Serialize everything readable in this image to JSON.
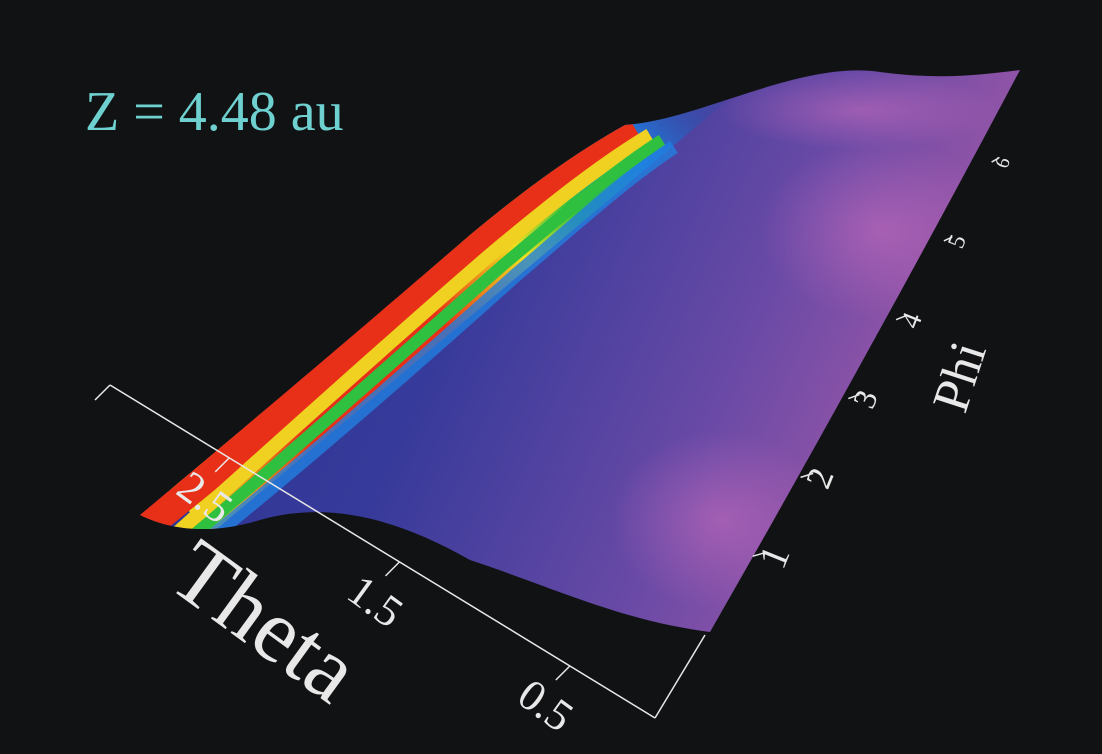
{
  "chart_data": {
    "type": "surface",
    "annotation": "Z = 4.48 au",
    "xlabel": "Theta",
    "ylabel": "Phi",
    "xlim": [
      0,
      3.2
    ],
    "xticks": [
      0.5,
      1.5,
      2.5
    ],
    "ylim": [
      0,
      6.28
    ],
    "yticks": [
      1,
      2,
      3,
      4,
      5,
      6
    ]
  }
}
